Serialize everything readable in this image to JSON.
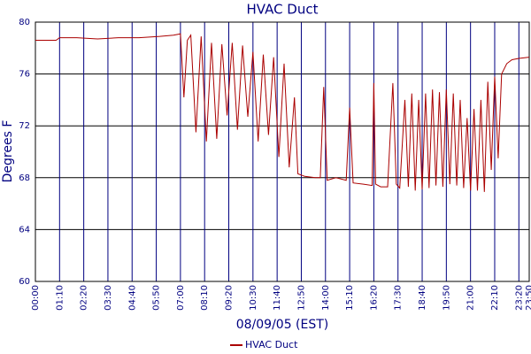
{
  "chart_data": {
    "type": "line",
    "title": "HVAC Duct",
    "x_label": "08/09/05 (EST)",
    "y_label": "Degrees F",
    "x": [
      0,
      60,
      70,
      120,
      180,
      240,
      300,
      360,
      400,
      420,
      430,
      440,
      450,
      465,
      480,
      495,
      510,
      525,
      540,
      555,
      570,
      585,
      600,
      615,
      630,
      645,
      660,
      675,
      690,
      705,
      720,
      735,
      750,
      760,
      780,
      810,
      825,
      835,
      845,
      870,
      900,
      910,
      920,
      950,
      975,
      980,
      985,
      1000,
      1020,
      1035,
      1045,
      1055,
      1070,
      1080,
      1090,
      1100,
      1110,
      1120,
      1130,
      1140,
      1150,
      1160,
      1170,
      1180,
      1190,
      1200,
      1210,
      1220,
      1230,
      1240,
      1250,
      1260,
      1270,
      1280,
      1290,
      1300,
      1310,
      1320,
      1330,
      1340,
      1350,
      1365,
      1380,
      1400,
      1430
    ],
    "series": [
      {
        "name": "HVAC Duct",
        "color": "#aa0000",
        "values": [
          78.6,
          78.6,
          78.8,
          78.8,
          78.7,
          78.8,
          78.8,
          78.9,
          79.0,
          79.1,
          74.2,
          78.6,
          79.0,
          71.5,
          78.9,
          70.8,
          78.4,
          71.0,
          78.3,
          72.8,
          78.4,
          71.7,
          78.2,
          72.7,
          77.7,
          70.8,
          77.5,
          71.3,
          77.3,
          69.6,
          76.8,
          68.8,
          74.2,
          68.3,
          68.1,
          68.0,
          68.0,
          75.0,
          67.8,
          68.0,
          67.8,
          73.4,
          67.6,
          67.5,
          67.4,
          75.3,
          67.5,
          67.3,
          67.3,
          75.3,
          67.5,
          67.2,
          74.0,
          67.3,
          74.5,
          67.0,
          74.0,
          67.1,
          74.5,
          67.2,
          74.8,
          67.4,
          74.6,
          67.3,
          74.8,
          67.5,
          74.5,
          67.4,
          74.0,
          67.2,
          72.6,
          67.0,
          73.3,
          67.0,
          74.0,
          66.9,
          75.4,
          68.6,
          75.8,
          69.5,
          76.0,
          76.8,
          77.1,
          77.2,
          77.3
        ]
      }
    ],
    "xlim": [
      0,
      1430
    ],
    "xticks": [
      {
        "value": 0,
        "label": "00:00"
      },
      {
        "value": 70,
        "label": "01:10"
      },
      {
        "value": 140,
        "label": "02:20"
      },
      {
        "value": 210,
        "label": "03:30"
      },
      {
        "value": 280,
        "label": "04:40"
      },
      {
        "value": 350,
        "label": "05:50"
      },
      {
        "value": 420,
        "label": "07:00"
      },
      {
        "value": 490,
        "label": "08:10"
      },
      {
        "value": 560,
        "label": "09:20"
      },
      {
        "value": 630,
        "label": "10:30"
      },
      {
        "value": 700,
        "label": "11:40"
      },
      {
        "value": 770,
        "label": "12:50"
      },
      {
        "value": 840,
        "label": "14:00"
      },
      {
        "value": 910,
        "label": "15:10"
      },
      {
        "value": 980,
        "label": "16:20"
      },
      {
        "value": 1050,
        "label": "17:30"
      },
      {
        "value": 1120,
        "label": "18:40"
      },
      {
        "value": 1190,
        "label": "19:50"
      },
      {
        "value": 1260,
        "label": "21:00"
      },
      {
        "value": 1330,
        "label": "22:10"
      },
      {
        "value": 1400,
        "label": "23:20"
      },
      {
        "value": 1430,
        "label": "23:50"
      }
    ],
    "ylim": [
      60,
      80
    ],
    "yticks": [
      60,
      64,
      68,
      72,
      76,
      80
    ],
    "grid": true
  }
}
